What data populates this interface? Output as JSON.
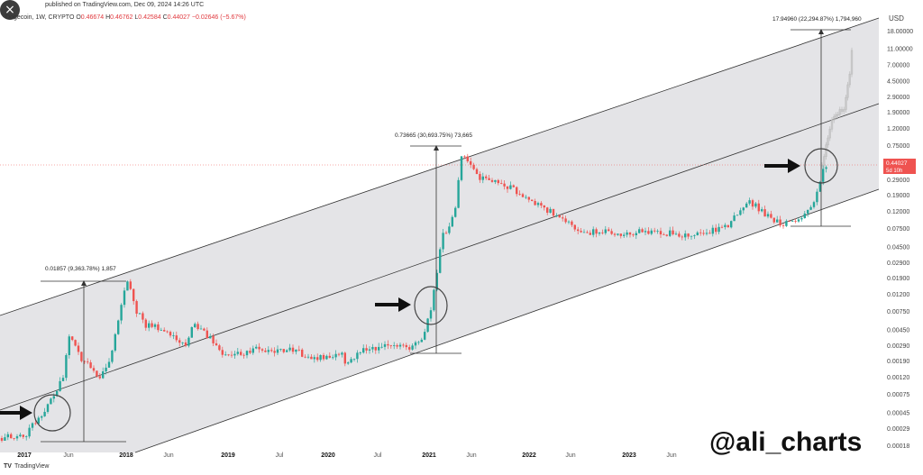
{
  "header": {
    "published": "published on TradingView.com, Dec 09, 2024 14:26 UTC",
    "symbol": "Dogecoin, 1W, CRYPTO",
    "o_label": "O",
    "o_value": "0.46674",
    "h_label": "H",
    "h_value": "0.46762",
    "l_label": "L",
    "l_value": "0.42584",
    "c_label": "C",
    "c_value": "0.44027",
    "change": "−0.02646 (−5.67%)"
  },
  "close_icon": "×",
  "footer": {
    "logo": "TV",
    "brand": "TradingView"
  },
  "watermark": "@ali_charts",
  "colors": {
    "up": "#26a69a",
    "down": "#ef5350",
    "projection": "#b9b9b9",
    "channel_fill": "#e4e4e7",
    "price_tag": "#ef5350",
    "arrow": "#111111"
  },
  "chart_data": {
    "type": "candlestick",
    "scale": "log",
    "currency": "USD",
    "price_axis_ticks": [
      "18.00000",
      "11.00000",
      "7.00000",
      "4.50000",
      "2.90000",
      "1.90000",
      "1.20000",
      "0.75000",
      "0.44027",
      "0.29000",
      "0.19000",
      "0.12000",
      "0.07500",
      "0.04500",
      "0.02900",
      "0.01900",
      "0.01200",
      "0.00750",
      "0.00450",
      "0.00290",
      "0.00190",
      "0.00120",
      "0.00075",
      "0.00045",
      "0.00029",
      "0.00018"
    ],
    "current_price": {
      "value": "0.44027",
      "countdown": "5d 10h"
    },
    "time_axis_ticks": [
      "2017",
      "Jun",
      "2018",
      "Jun",
      "2019",
      "Jul",
      "2020",
      "Jul",
      "2021",
      "Jun",
      "2022",
      "Jun",
      "2023",
      "Jun"
    ],
    "channel": "ascending parallel channel (upper, middle, lower lines)",
    "measurements": [
      {
        "label": "0.01857 (9,363.78%) 1,857",
        "from": 0.0002,
        "to": 0.01857
      },
      {
        "label": "0.73665 (30,693.75%) 73,665",
        "from": 0.0024,
        "to": 0.73665
      },
      {
        "label": "17.94960 (22,294.87%) 1,794,960",
        "from": 0.08,
        "to": 17.9496
      }
    ],
    "highlighted_zones": 3,
    "series": [
      {
        "name": "price",
        "points": [
          [
            0,
            0.00022
          ],
          [
            30,
            0.00025
          ],
          [
            40,
            0.00035
          ],
          [
            55,
            0.0006
          ],
          [
            70,
            0.0012
          ],
          [
            76,
            0.004
          ],
          [
            82,
            0.0035
          ],
          [
            90,
            0.002
          ],
          [
            100,
            0.0016
          ],
          [
            110,
            0.0012
          ],
          [
            122,
            0.0018
          ],
          [
            132,
            0.006
          ],
          [
            141,
            0.018
          ],
          [
            150,
            0.008
          ],
          [
            162,
            0.005
          ],
          [
            175,
            0.0048
          ],
          [
            190,
            0.004
          ],
          [
            205,
            0.0028
          ],
          [
            215,
            0.0052
          ],
          [
            230,
            0.0038
          ],
          [
            245,
            0.0024
          ],
          [
            260,
            0.0022
          ],
          [
            280,
            0.0026
          ],
          [
            300,
            0.0024
          ],
          [
            320,
            0.0026
          ],
          [
            340,
            0.0022
          ],
          [
            360,
            0.002
          ],
          [
            378,
            0.0023
          ],
          [
            385,
            0.0017
          ],
          [
            400,
            0.0025
          ],
          [
            420,
            0.0028
          ],
          [
            440,
            0.0028
          ],
          [
            460,
            0.0028
          ],
          [
            470,
            0.004
          ],
          [
            478,
            0.008
          ],
          [
            484,
            0.018
          ],
          [
            490,
            0.06
          ],
          [
            498,
            0.07
          ],
          [
            505,
            0.12
          ],
          [
            512,
            0.55
          ],
          [
            520,
            0.45
          ],
          [
            530,
            0.3
          ],
          [
            545,
            0.28
          ],
          [
            560,
            0.25
          ],
          [
            575,
            0.2
          ],
          [
            590,
            0.15
          ],
          [
            605,
            0.13
          ],
          [
            620,
            0.1
          ],
          [
            635,
            0.08
          ],
          [
            650,
            0.065
          ],
          [
            670,
            0.07
          ],
          [
            690,
            0.062
          ],
          [
            710,
            0.07
          ],
          [
            730,
            0.066
          ],
          [
            750,
            0.065
          ],
          [
            770,
            0.06
          ],
          [
            790,
            0.07
          ],
          [
            810,
            0.085
          ],
          [
            830,
            0.16
          ],
          [
            845,
            0.12
          ],
          [
            860,
            0.09
          ],
          [
            875,
            0.085
          ],
          [
            890,
            0.1
          ],
          [
            900,
            0.14
          ],
          [
            907,
            0.2
          ],
          [
            912,
            0.38
          ],
          [
            918,
            0.44
          ]
        ]
      },
      {
        "name": "projection",
        "points": [
          [
            912,
            0.42
          ],
          [
            918,
            0.9
          ],
          [
            925,
            1.6
          ],
          [
            935,
            1.9
          ],
          [
            940,
            3.4
          ],
          [
            943,
            5.5
          ],
          [
            945,
            10
          ],
          [
            947,
            17.9
          ]
        ]
      }
    ],
    "annotations": [
      "arrow → 2017 breakout",
      "arrow → 2020 breakout",
      "arrow → 2024 breakout"
    ]
  }
}
